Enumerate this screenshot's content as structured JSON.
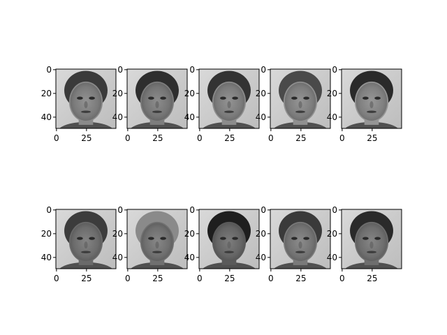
{
  "chart_data": {
    "type": "image-grid",
    "layout": {
      "rows": 2,
      "cols": 5
    },
    "image_shape": [
      50,
      50
    ],
    "colormap": "gray",
    "x_ticks": [
      0,
      25
    ],
    "y_ticks": [
      0,
      20,
      40
    ],
    "panels": [
      {
        "index": 0,
        "row": 0,
        "col": 0,
        "content": "grayscale face image"
      },
      {
        "index": 1,
        "row": 0,
        "col": 1,
        "content": "grayscale face image"
      },
      {
        "index": 2,
        "row": 0,
        "col": 2,
        "content": "grayscale face image"
      },
      {
        "index": 3,
        "row": 0,
        "col": 3,
        "content": "grayscale face image"
      },
      {
        "index": 4,
        "row": 0,
        "col": 4,
        "content": "grayscale face image"
      },
      {
        "index": 5,
        "row": 1,
        "col": 0,
        "content": "grayscale face image"
      },
      {
        "index": 6,
        "row": 1,
        "col": 1,
        "content": "grayscale face image"
      },
      {
        "index": 7,
        "row": 1,
        "col": 2,
        "content": "grayscale face image"
      },
      {
        "index": 8,
        "row": 1,
        "col": 3,
        "content": "grayscale face image"
      },
      {
        "index": 9,
        "row": 1,
        "col": 4,
        "content": "grayscale face image"
      }
    ]
  }
}
